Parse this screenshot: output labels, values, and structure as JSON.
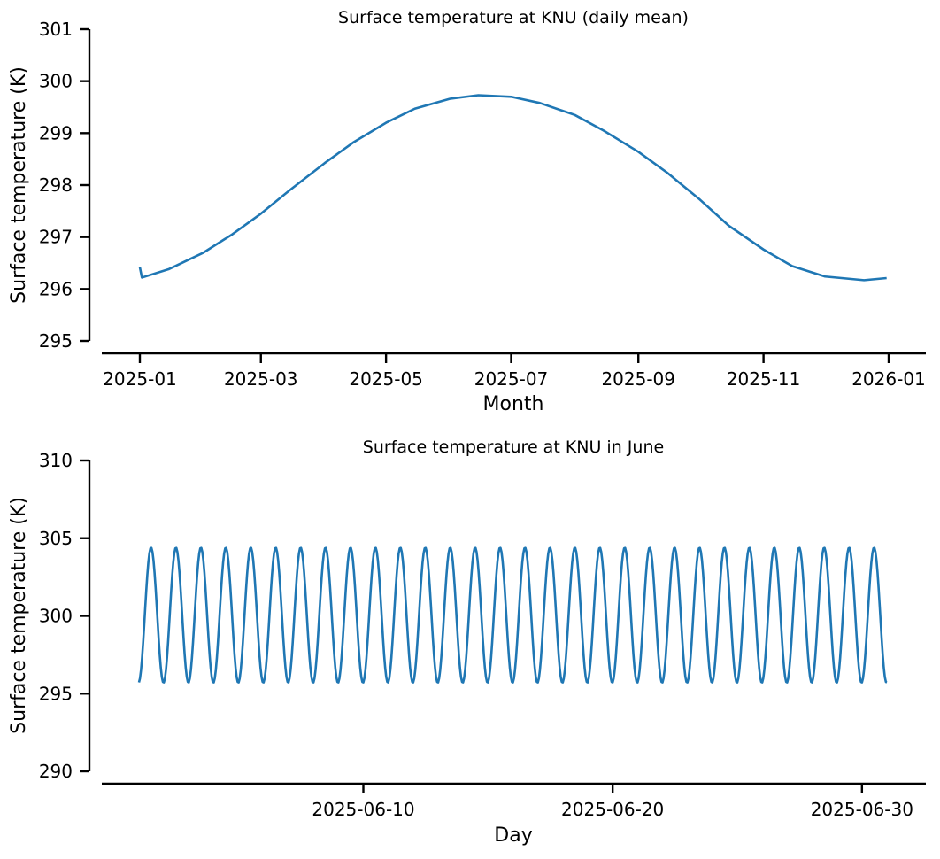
{
  "chart_data": [
    {
      "type": "line",
      "title": "Surface temperature at KNU (daily mean)",
      "xlabel": "Month",
      "ylabel": "Surface temperature (K)",
      "ylim": [
        295,
        301
      ],
      "yticks": [
        "295",
        "296",
        "297",
        "298",
        "299",
        "300",
        "301"
      ],
      "xticks": [
        "2025-01",
        "2025-03",
        "2025-05",
        "2025-07",
        "2025-09",
        "2025-11",
        "2026-01"
      ],
      "grid": false,
      "color": "#1f77b4",
      "series": [
        {
          "x": [
            "2025-01-01",
            "2025-01-02",
            "2025-01-15",
            "2025-02-01",
            "2025-02-15",
            "2025-03-01",
            "2025-03-15",
            "2025-04-01",
            "2025-04-15",
            "2025-05-01",
            "2025-05-15",
            "2025-06-01",
            "2025-06-15",
            "2025-07-01",
            "2025-07-15",
            "2025-08-01",
            "2025-08-15",
            "2025-09-01",
            "2025-09-15",
            "2025-10-01",
            "2025-10-15",
            "2025-11-01",
            "2025-11-15",
            "2025-12-01",
            "2025-12-20",
            "2025-12-31"
          ],
          "values": [
            296.42,
            296.22,
            296.38,
            296.7,
            297.05,
            297.45,
            297.9,
            298.42,
            298.82,
            299.2,
            299.47,
            299.66,
            299.73,
            299.7,
            299.58,
            299.35,
            299.05,
            298.64,
            298.24,
            297.72,
            297.22,
            296.76,
            296.44,
            296.24,
            296.17,
            296.21
          ]
        }
      ]
    },
    {
      "type": "line",
      "title": "Surface temperature at KNU in June",
      "xlabel": "Day",
      "ylabel": "Surface temperature (K)",
      "ylim": [
        290,
        310
      ],
      "yticks": [
        "290",
        "295",
        "300",
        "305",
        "310"
      ],
      "xticks": [
        "2025-06-10",
        "2025-06-20",
        "2025-06-30"
      ],
      "grid": false,
      "color": "#1f77b4",
      "series": [
        {
          "description_of_values": "hourly values from 2025-06-01 00:00 to 2025-07-01 00:00; diurnal cycle with daily maximum near 304.4 K and minimum near 295.7 K",
          "start": "2025-06-01 00:00",
          "end": "2025-07-01 00:00",
          "mean": 300.05,
          "amplitude": 4.35,
          "daily_max": 304.4,
          "daily_min": 295.7,
          "start_value": 297.0,
          "end_value": 297.1
        }
      ]
    }
  ]
}
